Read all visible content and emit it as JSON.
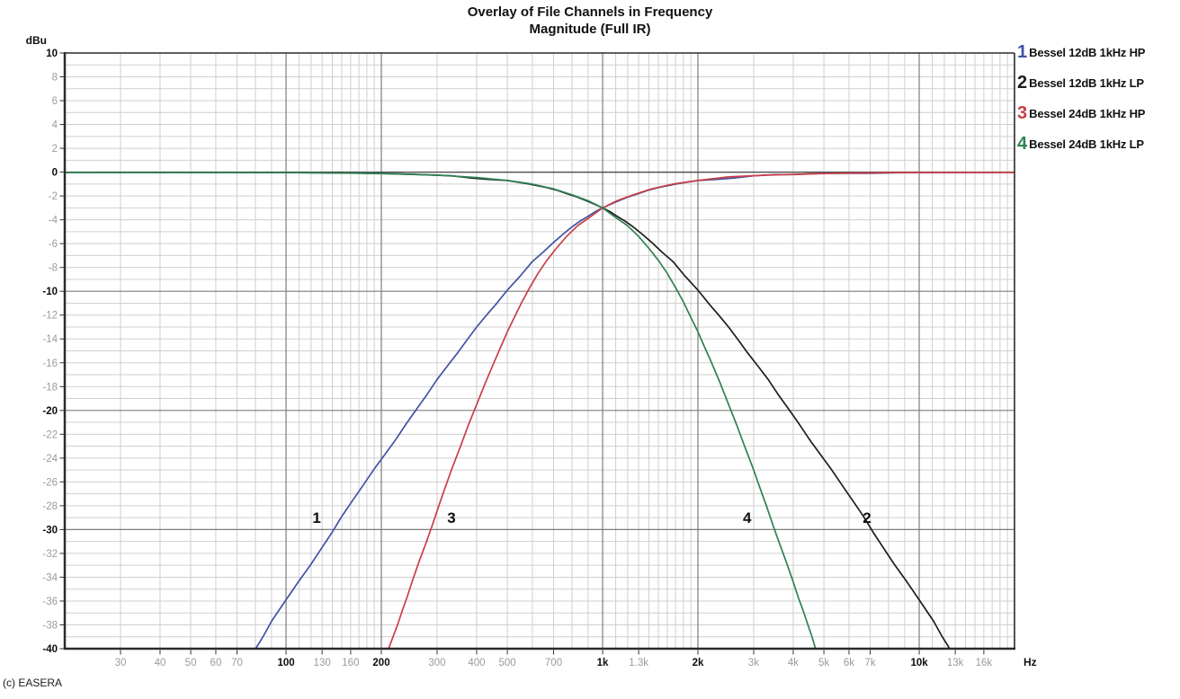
{
  "title": {
    "line1": "Overlay of File Channels in Frequency",
    "line2": "Magnitude (Full IR)"
  },
  "footer": {
    "copyright": "(c) EASERA"
  },
  "axes": {
    "y_unit": "dBu",
    "x_unit": "Hz"
  },
  "chart_data": {
    "type": "line",
    "title": "Overlay of File Channels in Frequency - Magnitude (Full IR)",
    "x_axis": {
      "scale": "log",
      "min": 20,
      "max": 20000,
      "unit": "Hz",
      "major_gridlines": [
        100,
        200,
        1000,
        2000,
        10000
      ],
      "minor_ranges": [
        [
          30,
          90,
          10
        ],
        [
          110,
          190,
          10
        ],
        [
          300,
          900,
          100
        ],
        [
          1100,
          1900,
          100
        ],
        [
          3000,
          9000,
          1000
        ],
        [
          11000,
          19000,
          1000
        ]
      ],
      "ticks": [
        {
          "f": 30,
          "label": "30",
          "major": false
        },
        {
          "f": 40,
          "label": "40",
          "major": false
        },
        {
          "f": 50,
          "label": "50",
          "major": false
        },
        {
          "f": 60,
          "label": "60",
          "major": false
        },
        {
          "f": 70,
          "label": "70",
          "major": false
        },
        {
          "f": 100,
          "label": "100",
          "major": true
        },
        {
          "f": 130,
          "label": "130",
          "major": false
        },
        {
          "f": 160,
          "label": "160",
          "major": false
        },
        {
          "f": 200,
          "label": "200",
          "major": true
        },
        {
          "f": 300,
          "label": "300",
          "major": false
        },
        {
          "f": 400,
          "label": "400",
          "major": false
        },
        {
          "f": 500,
          "label": "500",
          "major": false
        },
        {
          "f": 700,
          "label": "700",
          "major": false
        },
        {
          "f": 1000,
          "label": "1k",
          "major": true
        },
        {
          "f": 1300,
          "label": "1.3k",
          "major": false
        },
        {
          "f": 2000,
          "label": "2k",
          "major": true
        },
        {
          "f": 3000,
          "label": "3k",
          "major": false
        },
        {
          "f": 4000,
          "label": "4k",
          "major": false
        },
        {
          "f": 5000,
          "label": "5k",
          "major": false
        },
        {
          "f": 6000,
          "label": "6k",
          "major": false
        },
        {
          "f": 7000,
          "label": "7k",
          "major": false
        },
        {
          "f": 10000,
          "label": "10k",
          "major": true
        },
        {
          "f": 13000,
          "label": "13k",
          "major": false
        },
        {
          "f": 16000,
          "label": "16k",
          "major": false
        }
      ]
    },
    "y_axis": {
      "min": -40,
      "max": 10,
      "unit": "dBu",
      "label_step": 2,
      "grid_step": 1,
      "major_step": 10
    },
    "crossover_point": {
      "f": 1000,
      "db": -3
    },
    "series": [
      {
        "id": "1",
        "name": "Bessel 12dB 1kHz HP",
        "color": "#4053a4",
        "points": [
          [
            78,
            -40.5
          ],
          [
            85,
            -38.9
          ],
          [
            90,
            -37.7
          ],
          [
            100,
            -35.9
          ],
          [
            110,
            -34.3
          ],
          [
            120,
            -32.9
          ],
          [
            130,
            -31.5
          ],
          [
            140,
            -30.2
          ],
          [
            150,
            -28.9
          ],
          [
            160,
            -27.8
          ],
          [
            175,
            -26.3
          ],
          [
            190,
            -24.9
          ],
          [
            200,
            -24.1
          ],
          [
            220,
            -22.6
          ],
          [
            240,
            -21.1
          ],
          [
            260,
            -19.8
          ],
          [
            280,
            -18.6
          ],
          [
            300,
            -17.4
          ],
          [
            325,
            -16.2
          ],
          [
            350,
            -15.1
          ],
          [
            375,
            -14
          ],
          [
            400,
            -13
          ],
          [
            430,
            -12
          ],
          [
            460,
            -11.1
          ],
          [
            500,
            -9.9
          ],
          [
            550,
            -8.7
          ],
          [
            600,
            -7.5
          ],
          [
            650,
            -6.7
          ],
          [
            700,
            -5.9
          ],
          [
            750,
            -5.2
          ],
          [
            800,
            -4.6
          ],
          [
            850,
            -4.1
          ],
          [
            900,
            -3.7
          ],
          [
            950,
            -3.3
          ],
          [
            1000,
            -3
          ],
          [
            1100,
            -2.5
          ],
          [
            1200,
            -2.1
          ],
          [
            1300,
            -1.8
          ],
          [
            1400,
            -1.5
          ],
          [
            1500,
            -1.3
          ],
          [
            1700,
            -1
          ],
          [
            2000,
            -0.7
          ],
          [
            2300,
            -0.6
          ],
          [
            2600,
            -0.5
          ],
          [
            3000,
            -0.3
          ],
          [
            3500,
            -0.2
          ],
          [
            4000,
            -0.2
          ],
          [
            5000,
            -0.1
          ],
          [
            6000,
            -0.1
          ],
          [
            7000,
            -0.1
          ],
          [
            8500,
            -0.05
          ],
          [
            10000,
            -0.03
          ],
          [
            20000,
            -0.02
          ]
        ]
      },
      {
        "id": "2",
        "name": "Bessel 12dB 1kHz LP",
        "color": "#1d1d1d",
        "points": [
          [
            20,
            -0.02
          ],
          [
            50,
            -0.02
          ],
          [
            80,
            -0.03
          ],
          [
            100,
            -0.03
          ],
          [
            118,
            -0.05
          ],
          [
            143,
            -0.06
          ],
          [
            167,
            -0.08
          ],
          [
            200,
            -0.11
          ],
          [
            250,
            -0.18
          ],
          [
            286,
            -0.24
          ],
          [
            333,
            -0.3
          ],
          [
            385,
            -0.5
          ],
          [
            435,
            -0.6
          ],
          [
            500,
            -0.7
          ],
          [
            588,
            -1
          ],
          [
            667,
            -1.3
          ],
          [
            714,
            -1.5
          ],
          [
            769,
            -1.8
          ],
          [
            833,
            -2.1
          ],
          [
            909,
            -2.5
          ],
          [
            1000,
            -3
          ],
          [
            1053,
            -3.3
          ],
          [
            1111,
            -3.7
          ],
          [
            1176,
            -4.1
          ],
          [
            1250,
            -4.6
          ],
          [
            1333,
            -5.2
          ],
          [
            1429,
            -5.9
          ],
          [
            1538,
            -6.7
          ],
          [
            1667,
            -7.5
          ],
          [
            1818,
            -8.7
          ],
          [
            2000,
            -9.9
          ],
          [
            2174,
            -11.1
          ],
          [
            2326,
            -12
          ],
          [
            2500,
            -13
          ],
          [
            2667,
            -14
          ],
          [
            2857,
            -15.1
          ],
          [
            3077,
            -16.2
          ],
          [
            3333,
            -17.4
          ],
          [
            3571,
            -18.6
          ],
          [
            3846,
            -19.8
          ],
          [
            4167,
            -21.1
          ],
          [
            4545,
            -22.6
          ],
          [
            5000,
            -24.1
          ],
          [
            5263,
            -24.9
          ],
          [
            5714,
            -26.3
          ],
          [
            6250,
            -27.8
          ],
          [
            6667,
            -28.9
          ],
          [
            7143,
            -30.2
          ],
          [
            7692,
            -31.5
          ],
          [
            8333,
            -32.9
          ],
          [
            9091,
            -34.3
          ],
          [
            10000,
            -35.9
          ],
          [
            11111,
            -37.7
          ],
          [
            11765,
            -38.9
          ],
          [
            12820,
            -40.5
          ]
        ]
      },
      {
        "id": "3",
        "name": "Bessel 24dB 1kHz HP",
        "color": "#c93f47",
        "points": [
          [
            208,
            -40.4
          ],
          [
            217,
            -39.1
          ],
          [
            225,
            -38
          ],
          [
            233,
            -36.8
          ],
          [
            241,
            -35.7
          ],
          [
            250,
            -34.4
          ],
          [
            263,
            -32.7
          ],
          [
            278,
            -31
          ],
          [
            290,
            -29.6
          ],
          [
            303,
            -28.1
          ],
          [
            317,
            -26.6
          ],
          [
            333,
            -25
          ],
          [
            357,
            -22.9
          ],
          [
            377,
            -21.2
          ],
          [
            400,
            -19.5
          ],
          [
            426,
            -17.7
          ],
          [
            455,
            -15.9
          ],
          [
            476,
            -14.7
          ],
          [
            500,
            -13.4
          ],
          [
            526,
            -12.2
          ],
          [
            556,
            -10.9
          ],
          [
            588,
            -9.7
          ],
          [
            625,
            -8.5
          ],
          [
            667,
            -7.4
          ],
          [
            714,
            -6.4
          ],
          [
            769,
            -5.4
          ],
          [
            833,
            -4.5
          ],
          [
            909,
            -3.8
          ],
          [
            1000,
            -3
          ],
          [
            1111,
            -2.4
          ],
          [
            1250,
            -1.9
          ],
          [
            1429,
            -1.4
          ],
          [
            1667,
            -1
          ],
          [
            2000,
            -0.7
          ],
          [
            2500,
            -0.4
          ],
          [
            3333,
            -0.25
          ],
          [
            5000,
            -0.11
          ],
          [
            7000,
            -0.06
          ],
          [
            10000,
            -0.03
          ],
          [
            20000,
            -0.02
          ]
        ]
      },
      {
        "id": "4",
        "name": "Bessel 24dB 1kHz LP",
        "color": "#2f8153",
        "points": [
          [
            20,
            -0.02
          ],
          [
            100,
            -0.03
          ],
          [
            200,
            -0.11
          ],
          [
            300,
            -0.25
          ],
          [
            400,
            -0.45
          ],
          [
            500,
            -0.7
          ],
          [
            600,
            -1
          ],
          [
            700,
            -1.4
          ],
          [
            800,
            -1.9
          ],
          [
            900,
            -2.4
          ],
          [
            1000,
            -3
          ],
          [
            1100,
            -3.8
          ],
          [
            1200,
            -4.5
          ],
          [
            1300,
            -5.4
          ],
          [
            1400,
            -6.4
          ],
          [
            1500,
            -7.4
          ],
          [
            1600,
            -8.5
          ],
          [
            1700,
            -9.7
          ],
          [
            1800,
            -10.9
          ],
          [
            1900,
            -12.2
          ],
          [
            2000,
            -13.4
          ],
          [
            2100,
            -14.7
          ],
          [
            2200,
            -15.9
          ],
          [
            2350,
            -17.7
          ],
          [
            2500,
            -19.5
          ],
          [
            2650,
            -21.2
          ],
          [
            2800,
            -22.9
          ],
          [
            3000,
            -25
          ],
          [
            3150,
            -26.6
          ],
          [
            3300,
            -28.1
          ],
          [
            3450,
            -29.6
          ],
          [
            3600,
            -31
          ],
          [
            3800,
            -32.7
          ],
          [
            4000,
            -34.4
          ],
          [
            4150,
            -35.7
          ],
          [
            4300,
            -36.8
          ],
          [
            4450,
            -38
          ],
          [
            4600,
            -39.1
          ],
          [
            4750,
            -40.4
          ]
        ]
      }
    ],
    "annotations": [
      {
        "text": "1",
        "f": 125,
        "db": -29
      },
      {
        "text": "3",
        "f": 333,
        "db": -29
      },
      {
        "text": "4",
        "f": 2860,
        "db": -29
      },
      {
        "text": "2",
        "f": 6840,
        "db": -29
      }
    ]
  }
}
